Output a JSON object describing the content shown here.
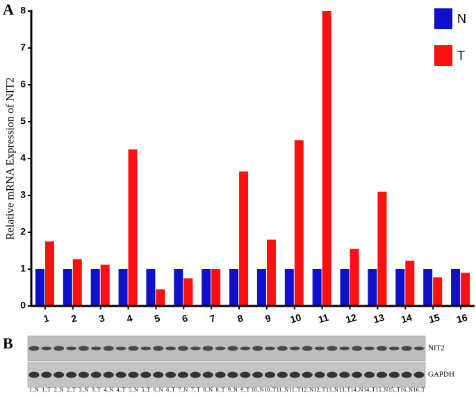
{
  "chart_data": {
    "type": "bar",
    "panel_label": "A",
    "y_label": "Relative mRNA Expression of NIT2",
    "categories": [
      "1",
      "2",
      "3",
      "4",
      "5",
      "6",
      "7",
      "8",
      "9",
      "10",
      "11",
      "12",
      "13",
      "14",
      "15",
      "16"
    ],
    "series": [
      {
        "name": "N",
        "color": "#1010c8",
        "values": [
          1,
          1,
          1,
          1,
          1,
          1,
          1,
          1,
          1,
          1,
          1,
          1,
          1,
          1,
          1,
          1
        ]
      },
      {
        "name": "T",
        "color": "#ff1010",
        "values": [
          1.75,
          1.27,
          1.12,
          4.25,
          0.45,
          0.75,
          1.0,
          3.65,
          1.8,
          4.5,
          8.0,
          1.55,
          3.1,
          1.23,
          0.78,
          0.9
        ]
      }
    ],
    "ylim": [
      0,
      8
    ],
    "yticks": [
      0,
      1,
      2,
      3,
      4,
      5,
      6,
      7,
      8
    ],
    "legend": "top-right"
  },
  "blot": {
    "panel_label": "B",
    "rows": [
      "NIT2",
      "GAPDH"
    ],
    "lanes": [
      "1_N",
      "1_T",
      "2_N",
      "2_T",
      "3_N",
      "3_T",
      "4_N",
      "4_T",
      "5_N",
      "5_T",
      "6_N",
      "6_T",
      "7_N",
      "7_T",
      "8_N",
      "8_T",
      "9_N",
      "9_T",
      "10_N",
      "10_T",
      "11_N",
      "11_T",
      "12_N",
      "12_T",
      "13_N",
      "13_T",
      "14_N",
      "14_T",
      "15_N",
      "15_T",
      "16_N",
      "16_T"
    ]
  }
}
